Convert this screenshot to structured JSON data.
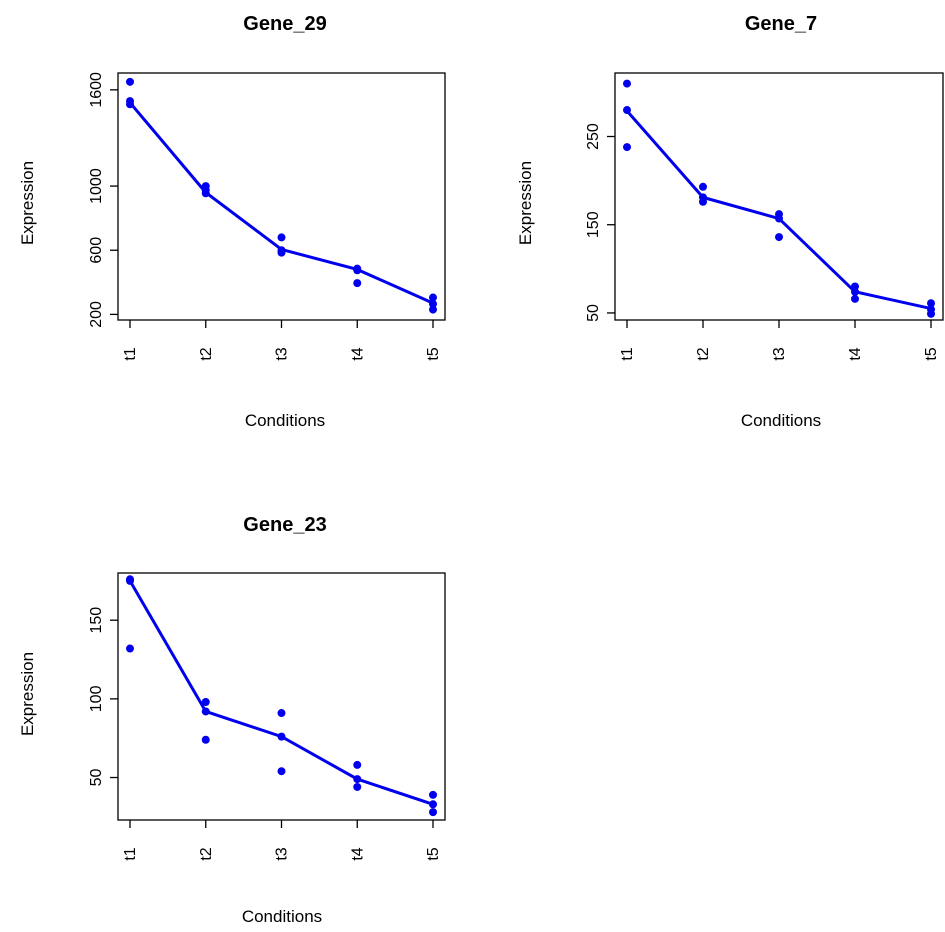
{
  "chart_data": [
    {
      "type": "line",
      "title": "Gene_29",
      "xlabel": "Conditions",
      "ylabel": "Expression",
      "categories": [
        "t1",
        "t2",
        "t3",
        "t4",
        "t5"
      ],
      "y_ticks": [
        200,
        600,
        1000,
        1600
      ],
      "y_tick_labels": [
        "200",
        "600",
        "1000",
        "1600"
      ],
      "ylim": [
        165,
        1705
      ],
      "mean_line": [
        1520,
        960,
        605,
        480,
        270
      ],
      "points": [
        [
          1,
          1650
        ],
        [
          1,
          1530
        ],
        [
          1,
          1510
        ],
        [
          2,
          1000
        ],
        [
          2,
          975
        ],
        [
          2,
          955
        ],
        [
          3,
          680
        ],
        [
          3,
          600
        ],
        [
          3,
          585
        ],
        [
          4,
          485
        ],
        [
          4,
          475
        ],
        [
          4,
          395
        ],
        [
          5,
          305
        ],
        [
          5,
          265
        ],
        [
          5,
          230
        ]
      ],
      "color": "#0000ee"
    },
    {
      "type": "line",
      "title": "Gene_7",
      "xlabel": "Conditions",
      "ylabel": "Expression",
      "categories": [
        "t1",
        "t2",
        "t3",
        "t4",
        "t5"
      ],
      "y_ticks": [
        50,
        150,
        250
      ],
      "y_tick_labels": [
        "50",
        "150",
        "250"
      ],
      "ylim": [
        42,
        322
      ],
      "mean_line": [
        279,
        181,
        157,
        74,
        55
      ],
      "points": [
        [
          1,
          310
        ],
        [
          1,
          280
        ],
        [
          1,
          238
        ],
        [
          2,
          193
        ],
        [
          2,
          181
        ],
        [
          2,
          176
        ],
        [
          3,
          162
        ],
        [
          3,
          157
        ],
        [
          3,
          136
        ],
        [
          4,
          80
        ],
        [
          4,
          74
        ],
        [
          4,
          66
        ],
        [
          5,
          61
        ],
        [
          5,
          54
        ],
        [
          5,
          49
        ]
      ],
      "color": "#0000ee"
    },
    {
      "type": "line",
      "title": "Gene_23",
      "xlabel": "Conditions",
      "ylabel": "Expression",
      "categories": [
        "t1",
        "t2",
        "t3",
        "t4",
        "t5"
      ],
      "y_ticks": [
        50,
        100,
        150
      ],
      "y_tick_labels": [
        "50",
        "100",
        "150"
      ],
      "ylim": [
        23,
        180
      ],
      "mean_line": [
        175,
        92,
        76,
        49,
        33
      ],
      "points": [
        [
          1,
          176
        ],
        [
          1,
          175
        ],
        [
          1,
          132
        ],
        [
          2,
          98
        ],
        [
          2,
          92
        ],
        [
          2,
          74
        ],
        [
          3,
          91
        ],
        [
          3,
          76
        ],
        [
          3,
          54
        ],
        [
          4,
          58
        ],
        [
          4,
          49
        ],
        [
          4,
          44
        ],
        [
          5,
          39
        ],
        [
          5,
          33
        ],
        [
          5,
          28
        ]
      ],
      "color": "#0000ee"
    }
  ]
}
